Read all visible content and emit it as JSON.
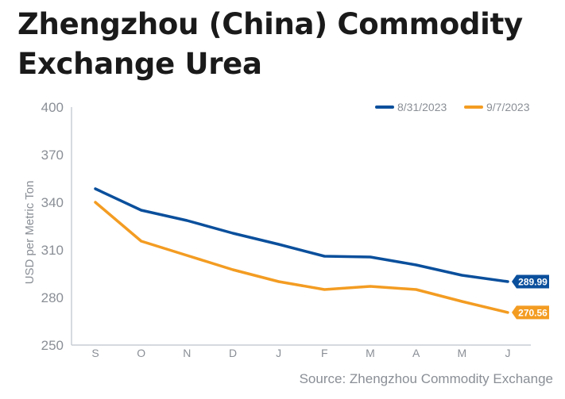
{
  "title_lines": [
    "Zhengzhou (China) Commodity",
    "Exchange Urea"
  ],
  "source": "Source: Zhengzhou Commodity Exchange",
  "colors": {
    "series_1": "#0a4f9c",
    "series_2": "#f39c22",
    "axis": "#c9ced6",
    "tick_text": "#8a8f96",
    "title": "#1a1a1a"
  },
  "chart_data": {
    "type": "line",
    "title": "Zhengzhou (China) Commodity Exchange Urea",
    "xlabel": "",
    "ylabel": "USD per Metric Ton",
    "categories": [
      "S",
      "O",
      "N",
      "D",
      "J",
      "F",
      "M",
      "A",
      "M",
      "J"
    ],
    "ylim": [
      250,
      400
    ],
    "yticks": [
      250,
      280,
      310,
      340,
      370,
      400
    ],
    "grid": false,
    "legend": "top-right",
    "series": [
      {
        "name": "8/31/2023",
        "color": "#0a4f9c",
        "values": [
          348.5,
          335,
          328.5,
          320.5,
          313.5,
          306,
          305.5,
          300.5,
          294,
          289.99
        ],
        "end_label": "289.99"
      },
      {
        "name": "9/7/2023",
        "color": "#f39c22",
        "values": [
          340,
          315.5,
          306.5,
          297.5,
          290,
          285,
          287,
          285,
          277.5,
          270.56
        ],
        "end_label": "270.56"
      }
    ]
  }
}
